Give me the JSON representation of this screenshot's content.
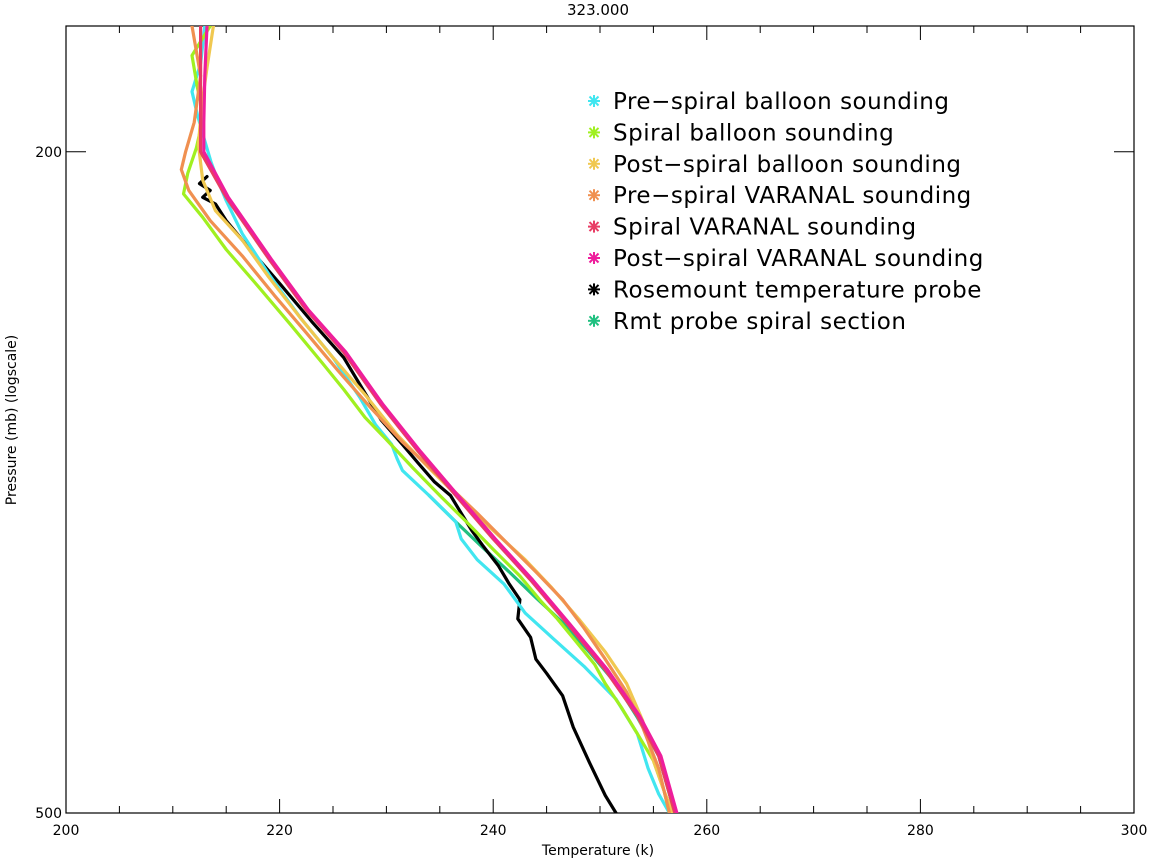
{
  "chart_data": {
    "type": "line",
    "title": "323.000",
    "xlabel": "Temperature (k)",
    "ylabel": "Pressure (mb) (logscale)",
    "xlim": [
      200,
      300
    ],
    "ylim": [
      500,
      168
    ],
    "yscale": "log",
    "xticks": [
      "200",
      "220",
      "240",
      "260",
      "280",
      "300"
    ],
    "yticks": [
      "200",
      "500"
    ],
    "legend_position": "top-right",
    "grid": false,
    "series": [
      {
        "name": "Pre−spiral balloon sounding",
        "color": "#41e6f0",
        "points": [
          [
            213.0,
            168
          ],
          [
            212.6,
            177
          ],
          [
            211.8,
            184
          ],
          [
            212.3,
            190
          ],
          [
            213.0,
            197
          ],
          [
            213.6,
            203
          ],
          [
            214.2,
            208
          ],
          [
            215.0,
            214
          ],
          [
            216.5,
            224
          ],
          [
            219.0,
            237
          ],
          [
            222.0,
            252
          ],
          [
            225.0,
            266
          ],
          [
            227.5,
            281
          ],
          [
            229.0,
            292
          ],
          [
            230.5,
            300
          ],
          [
            231.0,
            306
          ],
          [
            231.5,
            311
          ],
          [
            234.0,
            322
          ],
          [
            236.5,
            334
          ],
          [
            237.0,
            342
          ],
          [
            238.5,
            352
          ],
          [
            241.0,
            364
          ],
          [
            243.0,
            379
          ],
          [
            245.5,
            392
          ],
          [
            248.5,
            408
          ],
          [
            251.5,
            427
          ],
          [
            253.5,
            448
          ],
          [
            254.5,
            470
          ],
          [
            255.5,
            487
          ],
          [
            256.5,
            500
          ]
        ]
      },
      {
        "name": "Spiral balloon sounding",
        "color": "#a0f020",
        "points": [
          [
            213.5,
            168
          ],
          [
            211.8,
            175
          ],
          [
            212.3,
            183
          ],
          [
            212.9,
            190
          ],
          [
            212.2,
            199
          ],
          [
            211.4,
            206
          ],
          [
            211.0,
            212
          ],
          [
            212.8,
            219
          ],
          [
            215.0,
            229
          ],
          [
            218.0,
            241
          ],
          [
            221.0,
            254
          ],
          [
            224.0,
            268
          ],
          [
            226.0,
            278
          ],
          [
            228.0,
            289
          ],
          [
            230.0,
            298
          ],
          [
            232.5,
            310
          ],
          [
            235.0,
            322
          ],
          [
            237.5,
            334
          ],
          [
            240.0,
            347
          ],
          [
            242.5,
            360
          ],
          [
            244.5,
            373
          ],
          [
            246.0,
            382
          ],
          [
            248.0,
            396
          ],
          [
            249.5,
            407
          ],
          [
            250.5,
            418
          ],
          [
            252.0,
            432
          ],
          [
            253.5,
            448
          ],
          [
            255.0,
            465
          ],
          [
            256.0,
            485
          ],
          [
            256.5,
            500
          ]
        ]
      },
      {
        "name": "Post−spiral balloon sounding",
        "color": "#f0c850",
        "points": [
          [
            213.8,
            168
          ],
          [
            213.2,
            178
          ],
          [
            212.7,
            188
          ],
          [
            212.4,
            198
          ],
          [
            212.8,
            208
          ],
          [
            214.0,
            217
          ],
          [
            216.5,
            226
          ],
          [
            219.0,
            238
          ],
          [
            222.0,
            252
          ],
          [
            225.0,
            266
          ],
          [
            228.0,
            280
          ],
          [
            231.0,
            296
          ],
          [
            234.0,
            310
          ],
          [
            237.0,
            324
          ],
          [
            240.0,
            338
          ],
          [
            243.0,
            352
          ],
          [
            245.5,
            366
          ],
          [
            248.0,
            382
          ],
          [
            250.5,
            400
          ],
          [
            252.5,
            418
          ],
          [
            254.0,
            440
          ],
          [
            255.0,
            465
          ],
          [
            256.0,
            485
          ],
          [
            256.8,
            500
          ]
        ]
      },
      {
        "name": "Pre−spiral VARANAL sounding",
        "color": "#f09050",
        "points": [
          [
            211.8,
            168
          ],
          [
            212.6,
            180
          ],
          [
            212.0,
            192
          ],
          [
            211.2,
            200
          ],
          [
            210.8,
            205
          ],
          [
            211.5,
            211
          ],
          [
            213.5,
            220
          ],
          [
            216.5,
            231
          ],
          [
            219.5,
            244
          ],
          [
            222.5,
            257
          ],
          [
            225.5,
            271
          ],
          [
            228.5,
            285
          ],
          [
            231.5,
            299
          ],
          [
            235.0,
            314
          ],
          [
            238.5,
            330
          ],
          [
            241.5,
            345
          ],
          [
            244.0,
            358
          ],
          [
            246.5,
            372
          ],
          [
            248.5,
            387
          ],
          [
            250.5,
            404
          ],
          [
            252.5,
            423
          ],
          [
            254.0,
            444
          ],
          [
            255.5,
            470
          ],
          [
            256.5,
            500
          ]
        ]
      },
      {
        "name": "Spiral VARANAL sounding",
        "color": "#e83c64",
        "points": [
          [
            212.6,
            168
          ],
          [
            212.6,
            180
          ],
          [
            212.6,
            192
          ],
          [
            212.6,
            200
          ],
          [
            215.0,
            213
          ],
          [
            219.0,
            232
          ],
          [
            222.5,
            249
          ],
          [
            226.0,
            264
          ],
          [
            229.5,
            284
          ],
          [
            233.0,
            303
          ],
          [
            236.5,
            322
          ],
          [
            240.0,
            342
          ],
          [
            243.5,
            362
          ],
          [
            247.0,
            385
          ],
          [
            250.5,
            410
          ],
          [
            253.5,
            437
          ],
          [
            255.5,
            462
          ],
          [
            257.0,
            500
          ]
        ]
      },
      {
        "name": "Post−spiral VARANAL sounding",
        "color": "#ee1e9c",
        "points": [
          [
            213.2,
            168
          ],
          [
            213.0,
            180
          ],
          [
            212.9,
            192
          ],
          [
            212.9,
            200
          ],
          [
            215.2,
            213
          ],
          [
            219.2,
            232
          ],
          [
            222.7,
            249
          ],
          [
            226.2,
            264
          ],
          [
            229.7,
            284
          ],
          [
            233.2,
            303
          ],
          [
            236.7,
            322
          ],
          [
            240.2,
            342
          ],
          [
            243.7,
            362
          ],
          [
            247.2,
            385
          ],
          [
            250.7,
            410
          ],
          [
            253.7,
            437
          ],
          [
            255.7,
            462
          ],
          [
            257.2,
            500
          ]
        ]
      },
      {
        "name": "Rosemount temperature probe",
        "color": "#000000",
        "points": [
          [
            213.2,
            207
          ],
          [
            212.5,
            209
          ],
          [
            213.5,
            211
          ],
          [
            212.8,
            213
          ],
          [
            214.0,
            215
          ],
          [
            215.0,
            220
          ],
          [
            217.0,
            228
          ],
          [
            220.0,
            240
          ],
          [
            223.0,
            253
          ],
          [
            226.0,
            266
          ],
          [
            227.5,
            276
          ],
          [
            229.5,
            290
          ],
          [
            231.5,
            300
          ],
          [
            233.0,
            308
          ],
          [
            234.5,
            316
          ],
          [
            236.0,
            322
          ],
          [
            237.0,
            330
          ],
          [
            238.0,
            338
          ],
          [
            239.0,
            345
          ],
          [
            240.5,
            355
          ],
          [
            241.5,
            364
          ],
          [
            242.5,
            372
          ],
          [
            242.3,
            382
          ],
          [
            243.5,
            392
          ],
          [
            244.0,
            404
          ],
          [
            245.0,
            412
          ],
          [
            246.5,
            425
          ],
          [
            247.5,
            444
          ],
          [
            249.0,
            466
          ],
          [
            250.5,
            488
          ],
          [
            251.5,
            500
          ]
        ]
      },
      {
        "name": "Rmt probe spiral section",
        "color": "#20c080",
        "points": [
          [
            234.0,
            322
          ],
          [
            236.5,
            334
          ],
          [
            239.0,
            346
          ],
          [
            241.5,
            358
          ],
          [
            244.0,
            371
          ],
          [
            246.5,
            384
          ],
          [
            249.0,
            400
          ],
          [
            251.5,
            418
          ],
          [
            253.5,
            438
          ],
          [
            255.5,
            462
          ],
          [
            257.0,
            500
          ]
        ]
      }
    ]
  }
}
